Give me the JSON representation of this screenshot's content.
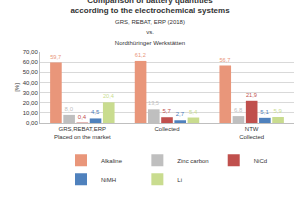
{
  "chart_data": {
    "type": "bar",
    "title": "Comparison of battery quantities\naccording to the electrochemical systems",
    "subtitle": "GRS, REBAT, ERP (2018)\nvs.\nNordthüringer Werkstätten",
    "y_label": "[%]",
    "categories": [
      "GRS,REBAT,ERP\nPlaced on the market",
      "Collected",
      "NTW\nCollected"
    ],
    "series": [
      {
        "name": "Alkaline",
        "color": "#e9967a",
        "values": [
          59.7,
          61.2,
          56.7
        ],
        "value_labels": [
          "59,7",
          "61,2",
          "56,7"
        ]
      },
      {
        "name": "Zinc carbon",
        "color": "#bfbfbf",
        "values": [
          8.0,
          13.5,
          6.8
        ],
        "value_labels": [
          "8,0",
          "13,5",
          "6,8"
        ]
      },
      {
        "name": "NiCd",
        "color": "#c0504d",
        "values": [
          0.4,
          5.7,
          21.9
        ],
        "value_labels": [
          "0,4",
          "5,7",
          "21,9"
        ]
      },
      {
        "name": "NiMH",
        "color": "#4f81bd",
        "values": [
          4.5,
          2.7,
          5.1
        ],
        "value_labels": [
          "4,5",
          "2,7",
          "5,1"
        ]
      },
      {
        "name": "Li",
        "color": "#c9dc8f",
        "values": [
          20.4,
          5.4,
          5.9
        ],
        "value_labels": [
          "20,4",
          "5,4",
          "5,9"
        ]
      }
    ],
    "ylim": [
      0,
      70
    ],
    "yticks": [
      {
        "value": 0,
        "label": "0,00"
      },
      {
        "value": 10,
        "label": "10,00"
      },
      {
        "value": 20,
        "label": "20,00"
      },
      {
        "value": 30,
        "label": "30,00"
      },
      {
        "value": 40,
        "label": "40,00"
      },
      {
        "value": 50,
        "label": "50,00"
      },
      {
        "value": 60,
        "label": "60,00"
      },
      {
        "value": 70,
        "label": "70,00"
      }
    ],
    "grid": true,
    "legend": "bottom",
    "data_labels": true
  }
}
